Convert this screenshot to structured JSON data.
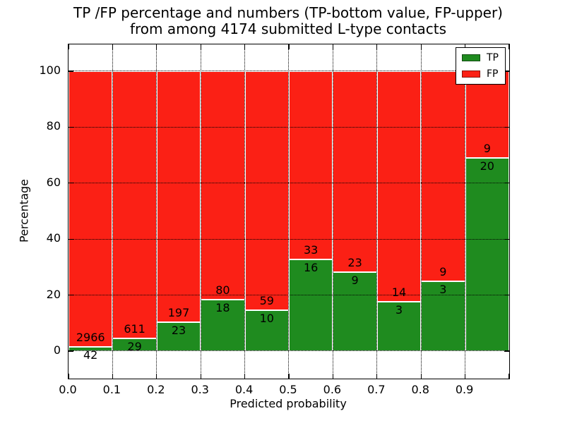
{
  "figure": {
    "title_line1": "TP /FP percentage and numbers (TP-bottom value, FP-upper)",
    "title_line2": "from among 4174 submitted L-type contacts"
  },
  "chart_data": {
    "type": "bar",
    "stacked": true,
    "title": "TP /FP percentage and numbers (TP-bottom value, FP-upper)\nfrom among 4174 submitted L-type contacts",
    "xlabel": "Predicted probability",
    "ylabel": "Percentage",
    "total_contacts": 4174,
    "categories": [
      "0.0-0.1",
      "0.1-0.2",
      "0.2-0.3",
      "0.3-0.4",
      "0.4-0.5",
      "0.5-0.6",
      "0.6-0.7",
      "0.7-0.8",
      "0.8-0.9",
      "0.9-1.0"
    ],
    "x_tick_labels": [
      "0.0",
      "0.1",
      "0.2",
      "0.3",
      "0.4",
      "0.5",
      "0.6",
      "0.7",
      "0.8",
      "0.9"
    ],
    "y_tick_labels": [
      "0",
      "20",
      "40",
      "60",
      "80",
      "100"
    ],
    "y_tick_values": [
      0,
      20,
      40,
      60,
      80,
      100
    ],
    "xlim": [
      0.0,
      1.0
    ],
    "ylim": [
      -10,
      110
    ],
    "bin_width": 0.1,
    "grid": "dotted black, horizontal at y ticks and vertical at x ticks",
    "series": [
      {
        "name": "TP",
        "color": "#1f8b1f",
        "counts": [
          42,
          29,
          23,
          18,
          10,
          16,
          9,
          3,
          3,
          20
        ],
        "percent": [
          1.4,
          4.53,
          10.45,
          18.37,
          14.49,
          32.65,
          28.13,
          17.65,
          25.0,
          68.97
        ]
      },
      {
        "name": "FP",
        "color": "#fb2015",
        "counts": [
          2966,
          611,
          197,
          80,
          59,
          33,
          23,
          14,
          9,
          9
        ],
        "percent": [
          98.6,
          95.47,
          89.55,
          81.63,
          85.51,
          67.35,
          71.87,
          82.35,
          75.0,
          31.03
        ]
      }
    ],
    "bar_edge_color": "#ffffff",
    "legend": {
      "position": "upper right",
      "entries": [
        {
          "label": "TP",
          "color": "#1f8b1f"
        },
        {
          "label": "FP",
          "color": "#fb2015"
        }
      ]
    }
  }
}
